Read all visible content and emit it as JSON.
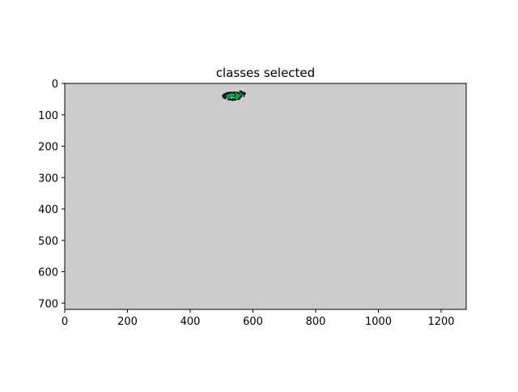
{
  "chart_data": {
    "type": "image",
    "title": "classes selected",
    "xlabel": "",
    "ylabel": "",
    "xlim": [
      0,
      1280
    ],
    "ylim": [
      720,
      0
    ],
    "xticks": [
      0,
      200,
      400,
      600,
      800,
      1000,
      1200
    ],
    "yticks": [
      0,
      100,
      200,
      300,
      400,
      500,
      600,
      700
    ],
    "grid": false,
    "background_color": "#cccccc",
    "class_color": "#00a550",
    "outline_color": "#000000",
    "selected_region": {
      "x_range": [
        500,
        575
      ],
      "y_range": [
        22,
        55
      ]
    }
  }
}
